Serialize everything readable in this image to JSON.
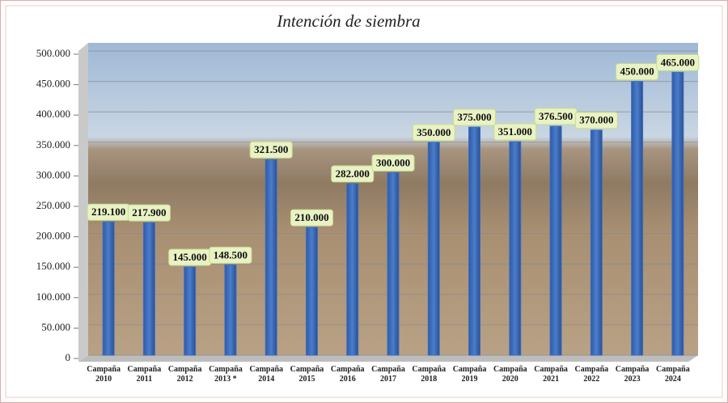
{
  "chart_data": {
    "type": "bar",
    "title": "Intención de siembra",
    "categories": [
      "Campaña 2010",
      "Campaña 2011",
      "Campaña 2012",
      "Campaña 2013 *",
      "Campaña 2014",
      "Campaña 2015",
      "Campaña 2016",
      "Campaña 2017",
      "Campaña 2018",
      "Campaña 2019",
      "Campaña 2020",
      "Campaña 2021",
      "Campaña 2022",
      "Campaña 2023",
      "Campaña 2024"
    ],
    "values": [
      219100,
      217900,
      145000,
      148500,
      321500,
      210000,
      282000,
      300000,
      350000,
      375000,
      351000,
      376500,
      370000,
      450000,
      465000
    ],
    "value_labels": [
      "219.100",
      "217.900",
      "145.000",
      "148.500",
      "321.500",
      "210.000",
      "282.000",
      "300.000",
      "350.000",
      "375.000",
      "351.000",
      "376.500",
      "370.000",
      "450.000",
      "465.000"
    ],
    "color": "#3f6fbf",
    "ylim": [
      0,
      500000
    ],
    "yticks": [
      0,
      {
        "value": 50000,
        "label": "50.000"
      },
      {
        "value": 100000,
        "label": "100.000"
      },
      {
        "value": 150000,
        "label": "150.000"
      },
      {
        "value": 200000,
        "label": "200.000"
      },
      {
        "value": 250000,
        "label": "250.000"
      },
      {
        "value": 300000,
        "label": "300.000"
      },
      {
        "value": 350000,
        "label": "350.000"
      },
      {
        "value": 400000,
        "label": "400.000"
      },
      {
        "value": 450000,
        "label": "450.000"
      },
      {
        "value": 500000,
        "label": "500.000"
      }
    ],
    "grid": true
  }
}
